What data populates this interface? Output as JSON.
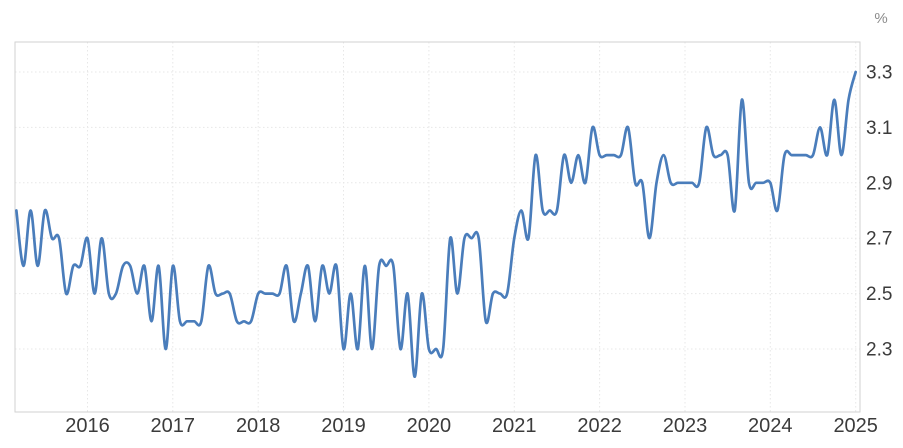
{
  "chart": {
    "unit_label": "%",
    "line_color": "#4a7dbb",
    "grid_color": "#e7e7e7",
    "border_color": "#d2d2d2",
    "axis_text_color": "#3b3b3b",
    "unit_text_color": "#8d8d8d",
    "background_color": "#ffffff"
  },
  "chart_data": {
    "type": "line",
    "title": "",
    "unit": "%",
    "frequency": "monthly",
    "x_start": "2015-03",
    "x_end": "2025-01",
    "x_tick_labels": [
      "2016",
      "2017",
      "2018",
      "2019",
      "2020",
      "2021",
      "2022",
      "2023",
      "2024",
      "2025"
    ],
    "y_tick_labels": [
      "3.3",
      "3.1",
      "2.9",
      "2.7",
      "2.5",
      "2.3"
    ],
    "y_ticks": [
      3.3,
      3.1,
      2.9,
      2.7,
      2.5,
      2.3
    ],
    "ylim": [
      2.07,
      3.41
    ],
    "grid": "dotted",
    "legend": "none",
    "values": [
      2.8,
      2.6,
      2.8,
      2.6,
      2.8,
      2.7,
      2.7,
      2.5,
      2.6,
      2.6,
      2.7,
      2.5,
      2.7,
      2.5,
      2.5,
      2.6,
      2.6,
      2.5,
      2.6,
      2.4,
      2.6,
      2.3,
      2.6,
      2.4,
      2.4,
      2.4,
      2.4,
      2.6,
      2.5,
      2.5,
      2.5,
      2.4,
      2.4,
      2.4,
      2.5,
      2.5,
      2.5,
      2.5,
      2.6,
      2.4,
      2.5,
      2.6,
      2.4,
      2.6,
      2.5,
      2.6,
      2.3,
      2.5,
      2.3,
      2.6,
      2.3,
      2.6,
      2.6,
      2.6,
      2.3,
      2.5,
      2.2,
      2.5,
      2.3,
      2.3,
      2.3,
      2.7,
      2.5,
      2.7,
      2.7,
      2.7,
      2.4,
      2.5,
      2.5,
      2.5,
      2.7,
      2.8,
      2.7,
      3.0,
      2.8,
      2.8,
      2.8,
      3.0,
      2.9,
      3.0,
      2.9,
      3.1,
      3.0,
      3.0,
      3.0,
      3.0,
      3.1,
      2.9,
      2.9,
      2.7,
      2.9,
      3.0,
      2.9,
      2.9,
      2.9,
      2.9,
      2.9,
      3.1,
      3.0,
      3.0,
      3.0,
      2.8,
      3.2,
      2.9,
      2.9,
      2.9,
      2.9,
      2.8,
      3.0,
      3.0,
      3.0,
      3.0,
      3.0,
      3.1,
      3.0,
      3.2,
      3.0,
      3.2,
      3.3
    ]
  }
}
